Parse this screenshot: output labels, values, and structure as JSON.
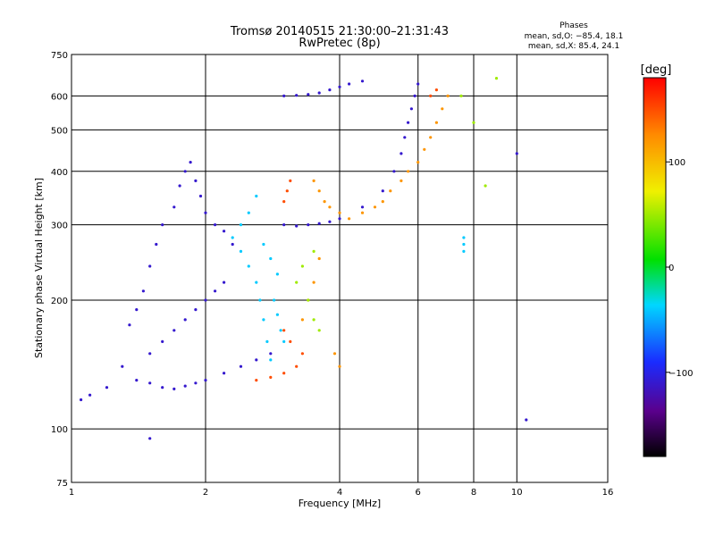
{
  "chart_data": {
    "type": "scatter",
    "title": "Tromsø 20140515 21:30:00–21:31:43",
    "subtitle": "RwPretec (8p)",
    "xlabel": "Frequency [MHz]",
    "ylabel": "Stationary phase Virtual Height [km]",
    "x_scale": "log",
    "y_scale": "log",
    "xlim": [
      1,
      16
    ],
    "ylim": [
      75,
      750
    ],
    "x_ticks": [
      1,
      2,
      4,
      6,
      8,
      10,
      16
    ],
    "y_ticks": [
      75,
      100,
      200,
      300,
      400,
      500,
      600,
      750
    ],
    "grid": true,
    "legend": {
      "heading": "Phases",
      "lines": [
        "mean, sd,O: −85.4, 18.1",
        "mean, sd,X: 85.4, 24.1"
      ]
    },
    "colorbar": {
      "label": "[deg]",
      "range": [
        -180,
        180
      ],
      "ticks": [
        100,
        0,
        -100
      ],
      "tick_labels": [
        "100",
        "0",
        "−100"
      ]
    },
    "series": [
      {
        "color_phase_deg": -110,
        "points": [
          [
            1.05,
            117
          ],
          [
            1.1,
            120
          ],
          [
            1.2,
            125
          ],
          [
            1.3,
            140
          ],
          [
            1.35,
            175
          ],
          [
            1.4,
            190
          ],
          [
            1.45,
            210
          ],
          [
            1.5,
            240
          ],
          [
            1.55,
            270
          ],
          [
            1.6,
            300
          ],
          [
            1.7,
            330
          ],
          [
            1.75,
            370
          ],
          [
            1.8,
            400
          ],
          [
            1.85,
            420
          ],
          [
            1.9,
            380
          ],
          [
            1.95,
            350
          ],
          [
            2.0,
            320
          ],
          [
            2.1,
            300
          ],
          [
            2.2,
            290
          ],
          [
            2.3,
            270
          ],
          [
            1.5,
            150
          ],
          [
            1.6,
            160
          ],
          [
            1.7,
            170
          ],
          [
            1.8,
            180
          ],
          [
            1.9,
            190
          ],
          [
            2.0,
            200
          ],
          [
            2.1,
            210
          ],
          [
            2.2,
            220
          ],
          [
            1.4,
            130
          ],
          [
            1.5,
            128
          ],
          [
            1.6,
            125
          ],
          [
            1.7,
            124
          ],
          [
            1.8,
            126
          ],
          [
            1.9,
            128
          ],
          [
            2.0,
            130
          ],
          [
            2.2,
            135
          ],
          [
            2.4,
            140
          ],
          [
            2.6,
            145
          ],
          [
            2.8,
            150
          ],
          [
            3.0,
            300
          ],
          [
            3.2,
            298
          ],
          [
            3.4,
            300
          ],
          [
            3.6,
            302
          ],
          [
            3.8,
            305
          ],
          [
            4.0,
            310
          ],
          [
            4.5,
            330
          ],
          [
            5.0,
            360
          ],
          [
            5.3,
            400
          ],
          [
            5.5,
            440
          ],
          [
            5.6,
            480
          ],
          [
            5.7,
            520
          ],
          [
            5.8,
            560
          ],
          [
            5.9,
            600
          ],
          [
            6.0,
            640
          ],
          [
            3.0,
            600
          ],
          [
            3.2,
            602
          ],
          [
            3.4,
            605
          ],
          [
            3.6,
            610
          ],
          [
            3.8,
            620
          ],
          [
            4.0,
            630
          ],
          [
            4.2,
            640
          ],
          [
            4.5,
            650
          ],
          [
            10.0,
            440
          ],
          [
            10.5,
            105
          ],
          [
            1.5,
            95
          ]
        ]
      },
      {
        "color_phase_deg": -40,
        "points": [
          [
            2.3,
            280
          ],
          [
            2.4,
            260
          ],
          [
            2.5,
            240
          ],
          [
            2.6,
            220
          ],
          [
            2.65,
            200
          ],
          [
            2.7,
            180
          ],
          [
            2.75,
            160
          ],
          [
            2.8,
            145
          ],
          [
            2.4,
            300
          ],
          [
            2.5,
            320
          ],
          [
            2.6,
            350
          ],
          [
            2.7,
            270
          ],
          [
            2.8,
            250
          ],
          [
            2.9,
            230
          ],
          [
            2.85,
            200
          ],
          [
            2.9,
            185
          ],
          [
            2.95,
            170
          ],
          [
            3.0,
            160
          ],
          [
            7.6,
            280
          ],
          [
            7.6,
            270
          ],
          [
            7.6,
            260
          ]
        ]
      },
      {
        "color_phase_deg": 120,
        "points": [
          [
            3.3,
            180
          ],
          [
            3.4,
            200
          ],
          [
            3.5,
            220
          ],
          [
            3.6,
            250
          ],
          [
            3.5,
            380
          ],
          [
            3.6,
            360
          ],
          [
            3.7,
            340
          ],
          [
            3.8,
            330
          ],
          [
            4.0,
            320
          ],
          [
            4.2,
            310
          ],
          [
            4.5,
            320
          ],
          [
            4.8,
            330
          ],
          [
            5.0,
            340
          ],
          [
            5.2,
            360
          ],
          [
            5.5,
            380
          ],
          [
            5.7,
            400
          ],
          [
            6.0,
            420
          ],
          [
            6.2,
            450
          ],
          [
            6.4,
            480
          ],
          [
            6.6,
            520
          ],
          [
            6.8,
            560
          ],
          [
            7.0,
            600
          ],
          [
            3.9,
            150
          ],
          [
            4.0,
            140
          ]
        ]
      },
      {
        "color_phase_deg": 150,
        "points": [
          [
            2.6,
            130
          ],
          [
            2.8,
            132
          ],
          [
            3.0,
            135
          ],
          [
            3.2,
            140
          ],
          [
            3.3,
            150
          ],
          [
            3.1,
            160
          ],
          [
            3.0,
            170
          ],
          [
            3.05,
            360
          ],
          [
            3.1,
            380
          ],
          [
            3.0,
            340
          ],
          [
            6.4,
            600
          ],
          [
            6.6,
            620
          ]
        ]
      },
      {
        "color_phase_deg": 50,
        "points": [
          [
            3.2,
            220
          ],
          [
            3.3,
            240
          ],
          [
            3.5,
            260
          ],
          [
            3.4,
            200
          ],
          [
            3.5,
            180
          ],
          [
            3.6,
            170
          ],
          [
            7.5,
            600
          ],
          [
            8.0,
            520
          ],
          [
            9.0,
            660
          ],
          [
            8.5,
            370
          ]
        ]
      }
    ]
  }
}
